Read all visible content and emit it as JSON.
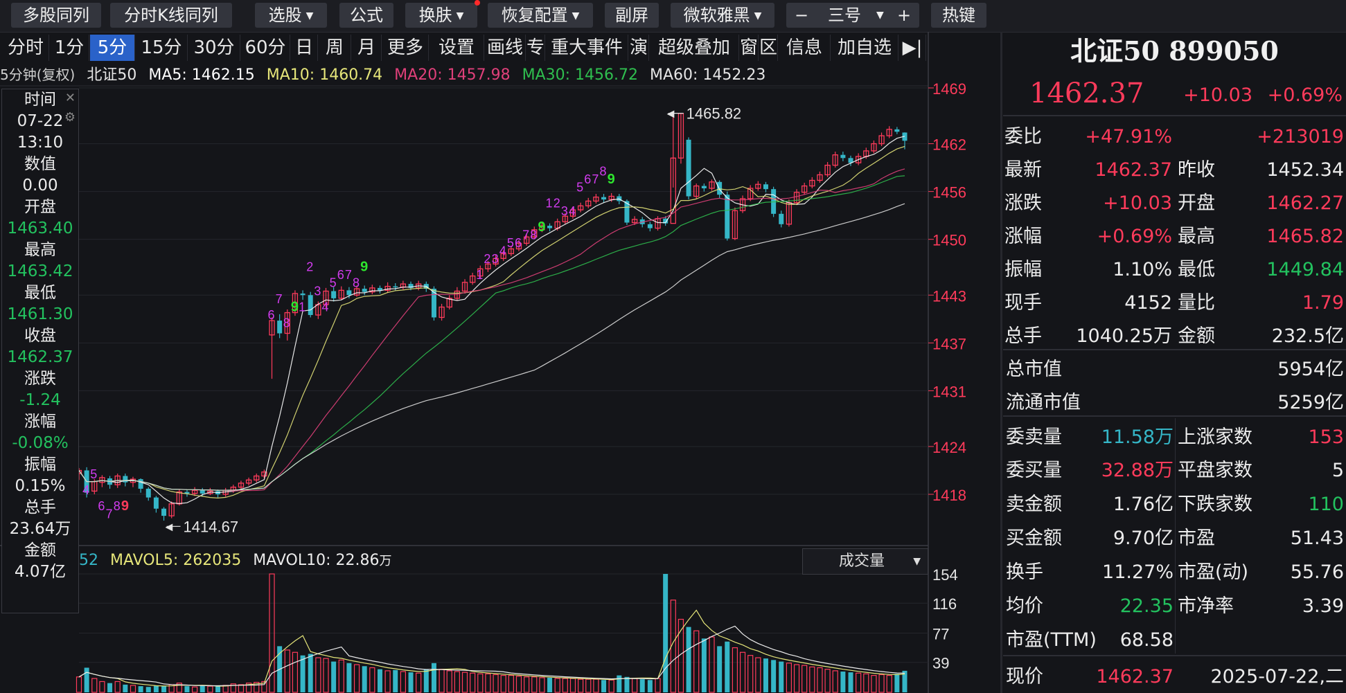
{
  "toolbar": {
    "multi_stock": "多股同列",
    "intraday_k": "分时K线同列",
    "select_stock": "选股",
    "formula": "公式",
    "skin": "换肤",
    "restore": "恢复配置",
    "sub_screen": "副屏",
    "font": "微软雅黑",
    "minus": "−",
    "font_size": "三号",
    "plus": "+",
    "hotkey": "热键"
  },
  "tabs": [
    "分时",
    "1分",
    "5分",
    "15分",
    "30分",
    "60分",
    "日",
    "周",
    "月",
    "更多",
    "设置",
    "画线",
    "专",
    "重大事件",
    "演",
    "超级叠加",
    "窗",
    "区",
    "信息",
    "加自选",
    "▶|"
  ],
  "active_tab": "5分",
  "ma_legend": {
    "period": "5分钟(复权)",
    "name": "北证50",
    "ma5": "MA5: 1462.15",
    "ma10": "MA10: 1460.74",
    "ma20": "MA20: 1457.98",
    "ma30": "MA30: 1456.72",
    "ma60": "MA60: 1452.23"
  },
  "info_panel": {
    "time_label": "时间",
    "date": "07-22",
    "time": "13:10",
    "value_label": "数值",
    "value": "0.00",
    "open_label": "开盘",
    "open": "1463.40",
    "high_label": "最高",
    "high": "1463.42",
    "low_label": "最低",
    "low": "1461.30",
    "close_label": "收盘",
    "close": "1462.37",
    "change_label": "涨跌",
    "change": "-1.24",
    "pct_label": "涨幅",
    "pct": "-0.08%",
    "amp_label": "振幅",
    "amp": "0.15%",
    "vol_label": "总手",
    "vol": "23.64万",
    "amount_label": "金额",
    "amount": "4.07亿"
  },
  "price_axis": [
    "1469",
    "1462",
    "1456",
    "1450",
    "1443",
    "1437",
    "1431",
    "1424",
    "1418"
  ],
  "vol_axis": [
    "154",
    "116",
    "77",
    "39"
  ],
  "annotations": {
    "high": "1465.82",
    "low": "1414.67"
  },
  "vol_legend": {
    "vol": "52",
    "mavol5": "MAVOL5: 262035",
    "mavol10": "MAVOL10: 22.86",
    "mavol10_unit": "万"
  },
  "vol_selector": "成交量",
  "right_panel": {
    "title": "北证50 899050",
    "price": "1462.37",
    "change": "+10.03",
    "change_pct": "+0.69%",
    "weibi_label": "委比",
    "weibi": "+47.91%",
    "weicha": "+213019",
    "latest_label": "最新",
    "latest": "1462.37",
    "prev_close_label": "昨收",
    "prev_close": "1452.34",
    "chg_label": "涨跌",
    "chg": "+10.03",
    "open_label": "开盘",
    "open": "1462.27",
    "chgpct_label": "涨幅",
    "chgpct": "+0.69%",
    "high_label": "最高",
    "high": "1465.82",
    "amp_label": "振幅",
    "amp": "1.10%",
    "low_label": "最低",
    "low": "1449.84",
    "cur_hand_label": "现手",
    "cur_hand": "4152",
    "vol_ratio_label": "量比",
    "vol_ratio": "1.79",
    "total_hand_label": "总手",
    "total_hand": "1040.25万",
    "amount_label": "金额",
    "amount": "232.5亿",
    "mktcap_label": "总市值",
    "mktcap": "5954亿",
    "float_cap_label": "流通市值",
    "float_cap": "5259亿",
    "sell_vol_label": "委卖量",
    "sell_vol": "11.58万",
    "up_count_label": "上涨家数",
    "up_count": "153",
    "buy_vol_label": "委买量",
    "buy_vol": "32.88万",
    "flat_count_label": "平盘家数",
    "flat_count": "5",
    "sell_amt_label": "卖金额",
    "sell_amt": "1.76亿",
    "down_count_label": "下跌家数",
    "down_count": "110",
    "buy_amt_label": "买金额",
    "buy_amt": "9.70亿",
    "pe_label": "市盈",
    "pe": "51.43",
    "turnover_label": "换手",
    "turnover": "11.27%",
    "pe_dyn_label": "市盈(动)",
    "pe_dyn": "55.76",
    "avg_label": "均价",
    "avg": "22.35",
    "pb_label": "市净率",
    "pb": "3.39",
    "pe_ttm_label": "市盈(TTM)",
    "pe_ttm": "68.58",
    "now_label": "现价",
    "now": "1462.37",
    "date": "2025-07-22,二"
  },
  "colors": {
    "up": "#ff3b5b",
    "down": "#35b6c7",
    "ma5": "#ffffff",
    "ma10": "#e6e67a",
    "ma20": "#e0407a",
    "ma30": "#2fbf4f",
    "ma60": "#e0e0e0",
    "seq_magenta": "#d33cf0",
    "seq_green": "#2ee62e"
  }
}
